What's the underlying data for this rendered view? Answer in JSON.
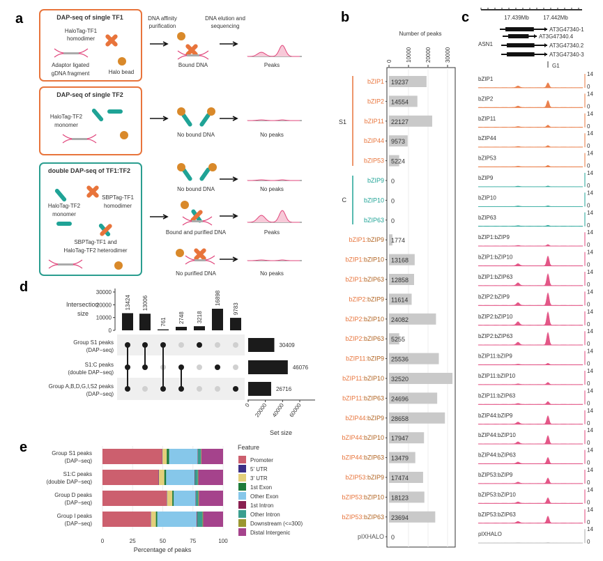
{
  "colors": {
    "orange": "#E8743B",
    "teal": "#1FA396",
    "pink": "#E0457B",
    "bead": "#D9892A",
    "bar_gray": "#C9C9C9",
    "dark": "#1b1b1b"
  },
  "panel_a": {
    "letter": "a",
    "box1": {
      "title": "DAP-seq of single TF1",
      "protein": [
        "HaloTag-TF1",
        "homodimer"
      ],
      "dna": [
        "Adaptor ligated",
        "gDNA fragment"
      ],
      "bead": "Halo bead"
    },
    "step_labels": {
      "affinity": [
        "DNA affinity",
        "purification"
      ],
      "elution": [
        "DNA elution and",
        "sequencing"
      ]
    },
    "row1": {
      "result": "Bound DNA",
      "peaks": "Peaks"
    },
    "box2": {
      "title": "DAP-seq of single TF2",
      "protein": [
        "HaloTag-TF2",
        "monomer"
      ]
    },
    "row2": {
      "result": "No bound DNA",
      "peaks": "No peaks"
    },
    "box3": {
      "title": "double DAP-seq of TF1:TF2",
      "mono": [
        "HaloTag-TF2",
        "monomer"
      ],
      "homo": [
        "SBPTag-TF1",
        "homodimer"
      ],
      "hetero": [
        "SBPTag-TF1 and",
        "HaloTag-TF2 heterodimer"
      ]
    },
    "row3": {
      "result1": "No bound DNA",
      "peaks1": "No peaks",
      "result2": "Bound and purified DNA",
      "peaks2": "Peaks",
      "result3": "No purified DNA",
      "peaks3": "No peaks"
    }
  },
  "panel_b": {
    "letter": "b",
    "xlabel": "Number of peaks",
    "ticks": [
      0,
      10000,
      20000,
      30000
    ],
    "groups": [
      {
        "label": "S1",
        "color": "orange"
      },
      {
        "label": "C",
        "color": "teal"
      }
    ],
    "rows": [
      {
        "a": "bZIP1",
        "b": "",
        "value": 19237
      },
      {
        "a": "bZIP2",
        "b": "",
        "value": 14554
      },
      {
        "a": "bZIP11",
        "b": "",
        "value": 22127
      },
      {
        "a": "bZIP44",
        "b": "",
        "value": 9573
      },
      {
        "a": "bZIP53",
        "b": "",
        "value": 5224
      },
      {
        "a": "",
        "b": "bZIP9",
        "value": 0
      },
      {
        "a": "",
        "b": "bZIP10",
        "value": 0
      },
      {
        "a": "",
        "b": "bZIP63",
        "value": 0
      },
      {
        "a": "bZIP1:",
        "b": "bZIP9",
        "value": 1774
      },
      {
        "a": "bZIP1:",
        "b": "bZIP10",
        "value": 13168
      },
      {
        "a": "bZIP1:",
        "b": "bZIP63",
        "value": 12858
      },
      {
        "a": "bZIP2:",
        "b": "bZIP9",
        "value": 11614
      },
      {
        "a": "bZIP2:",
        "b": "bZIP10",
        "value": 24082
      },
      {
        "a": "bZIP2:",
        "b": "bZIP63",
        "value": 5255
      },
      {
        "a": "bZIP11:",
        "b": "bZIP9",
        "value": 25536
      },
      {
        "a": "bZIP11:",
        "b": "bZIP10",
        "value": 32520
      },
      {
        "a": "bZIP11:",
        "b": "bZIP63",
        "value": 24696
      },
      {
        "a": "bZIP44:",
        "b": "bZIP9",
        "value": 28658
      },
      {
        "a": "bZIP44:",
        "b": "bZIP10",
        "value": 17947
      },
      {
        "a": "bZIP44:",
        "b": "bZIP63",
        "value": 13479
      },
      {
        "a": "bZIP53:",
        "b": "bZIP9",
        "value": 17474
      },
      {
        "a": "bZIP53:",
        "b": "bZIP10",
        "value": 18123
      },
      {
        "a": "bZIP53:",
        "b": "bZIP63",
        "value": 23694
      },
      {
        "a": "",
        "b": "",
        "plain": "pIXHALO",
        "value": 0
      }
    ]
  },
  "panel_c": {
    "letter": "c",
    "coords": [
      "17.439Mb",
      "17.442Mb"
    ],
    "gene": "ASN1",
    "transcripts": [
      "AT3G47340-1",
      "AT3G47340.4",
      "AT3G47340.2",
      "AT3G47340-3"
    ],
    "region": "G1",
    "scale_max": "14",
    "scale_min": "0",
    "tracks": [
      {
        "label": "bZIP1",
        "color": "orange",
        "main": 0.35,
        "sec": 0.12
      },
      {
        "label": "bZIP2",
        "color": "orange",
        "main": 0.5,
        "sec": 0.1
      },
      {
        "label": "bZIP11",
        "color": "orange",
        "main": 0.15,
        "sec": 0.05
      },
      {
        "label": "bZIP44",
        "color": "orange",
        "main": 0.1,
        "sec": 0.04
      },
      {
        "label": "bZIP53",
        "color": "orange",
        "main": 0.1,
        "sec": 0.04
      },
      {
        "label": "bZIP9",
        "color": "teal",
        "main": 0.05,
        "sec": 0.04
      },
      {
        "label": "bZIP10",
        "color": "teal",
        "main": 0.05,
        "sec": 0.04
      },
      {
        "label": "bZIP63",
        "color": "teal",
        "main": 0.06,
        "sec": 0.04
      },
      {
        "label": "bZIP1:bZIP9",
        "color": "pink",
        "main": 0.1,
        "sec": 0.04
      },
      {
        "label": "bZIP1:bZIP10",
        "color": "pink",
        "main": 0.7,
        "sec": 0.15
      },
      {
        "label": "bZIP1:bZIP63",
        "color": "pink",
        "main": 0.85,
        "sec": 0.2
      },
      {
        "label": "bZIP2:bZIP9",
        "color": "pink",
        "main": 0.9,
        "sec": 0.2
      },
      {
        "label": "bZIP2:bZIP10",
        "color": "pink",
        "main": 0.95,
        "sec": 0.25
      },
      {
        "label": "bZIP2:bZIP63",
        "color": "pink",
        "main": 0.9,
        "sec": 0.2
      },
      {
        "label": "bZIP11:bZIP9",
        "color": "pink",
        "main": 0.1,
        "sec": 0.04
      },
      {
        "label": "bZIP11:bZIP10",
        "color": "pink",
        "main": 0.15,
        "sec": 0.05
      },
      {
        "label": "bZIP11:bZIP63",
        "color": "pink",
        "main": 0.2,
        "sec": 0.06
      },
      {
        "label": "bZIP44:bZIP9",
        "color": "pink",
        "main": 0.6,
        "sec": 0.15
      },
      {
        "label": "bZIP44:bZIP10",
        "color": "pink",
        "main": 0.6,
        "sec": 0.15
      },
      {
        "label": "bZIP44:bZIP63",
        "color": "pink",
        "main": 0.45,
        "sec": 0.12
      },
      {
        "label": "bZIP53:bZIP9",
        "color": "pink",
        "main": 0.4,
        "sec": 0.1
      },
      {
        "label": "bZIP53:bZIP10",
        "color": "pink",
        "main": 0.4,
        "sec": 0.1
      },
      {
        "label": "bZIP53:bZIP63",
        "color": "pink",
        "main": 0.5,
        "sec": 0.12
      },
      {
        "label": "pIXHALO",
        "color": "gray",
        "main": 0.02,
        "sec": 0.01
      }
    ]
  },
  "chart_data": [
    {
      "type": "upset",
      "title": "",
      "ylabel": "Intersection size",
      "yticks": [
        0,
        10000,
        20000,
        30000
      ],
      "intersections": [
        13424,
        13006,
        761,
        2748,
        3218,
        16898,
        9783
      ],
      "sets": [
        {
          "name": "Group S1 peaks",
          "sub": "(DAP−seq)",
          "size": 30409
        },
        {
          "name": "S1:C peaks",
          "sub": "(double DAP−seq)",
          "size": 46076
        },
        {
          "name": "Group A,B,D,G,I,S2 peaks",
          "sub": "(DAP−seq)",
          "size": 26716
        }
      ],
      "membership": [
        [
          1,
          1,
          1
        ],
        [
          1,
          1,
          0
        ],
        [
          1,
          0,
          1
        ],
        [
          0,
          1,
          1
        ],
        [
          1,
          0,
          0
        ],
        [
          0,
          1,
          0
        ],
        [
          0,
          0,
          1
        ]
      ],
      "set_xlabel": "Set size",
      "set_ticks": [
        0,
        20000,
        40000,
        60000
      ]
    },
    {
      "type": "bar",
      "stacked": true,
      "orientation": "horizontal",
      "xlabel": "Percentage of peaks",
      "xticks": [
        0,
        25,
        50,
        75,
        100
      ],
      "legend_title": "Feature",
      "legend_position": "right",
      "categories": [
        {
          "name": "Group S1 peaks",
          "sub": "(DAP−seq)"
        },
        {
          "name": "S1:C peaks",
          "sub": "(double DAP−seq)"
        },
        {
          "name": "Group D peaks",
          "sub": "(DAP−seq)"
        },
        {
          "name": "Group I peaks",
          "sub": "(DAP−seq)"
        }
      ],
      "series": [
        {
          "name": "Promoter",
          "color": "#CC5F6E",
          "values": [
            49.5,
            46.5,
            53.3,
            40
          ]
        },
        {
          "name": "5' UTR",
          "color": "#3B2F86",
          "values": [
            0.3,
            0.3,
            0.3,
            0.3
          ]
        },
        {
          "name": "3' UTR",
          "color": "#E3CF7A",
          "values": [
            3.5,
            4.5,
            4.3,
            4
          ]
        },
        {
          "name": "1st Exon",
          "color": "#1E7B3A",
          "values": [
            2,
            1.5,
            1.2,
            1.2
          ]
        },
        {
          "name": "Other Exon",
          "color": "#86C7EA",
          "values": [
            23.5,
            23.5,
            18,
            32.5
          ]
        },
        {
          "name": "1st Intron",
          "color": "#8A2050",
          "values": [
            0.3,
            0.3,
            0.3,
            0.5
          ]
        },
        {
          "name": "Other Intron",
          "color": "#3A9E8F",
          "values": [
            2.5,
            2.5,
            2,
            4.5
          ]
        },
        {
          "name": "Downstream (<=300)",
          "color": "#9A9630",
          "values": [
            0.4,
            0.4,
            0.6,
            0.5
          ]
        },
        {
          "name": "Distal Intergenic",
          "color": "#A5438C",
          "values": [
            18,
            20.5,
            20,
            16.5
          ]
        }
      ]
    }
  ],
  "panel_d": {
    "letter": "d"
  },
  "panel_e": {
    "letter": "e"
  }
}
